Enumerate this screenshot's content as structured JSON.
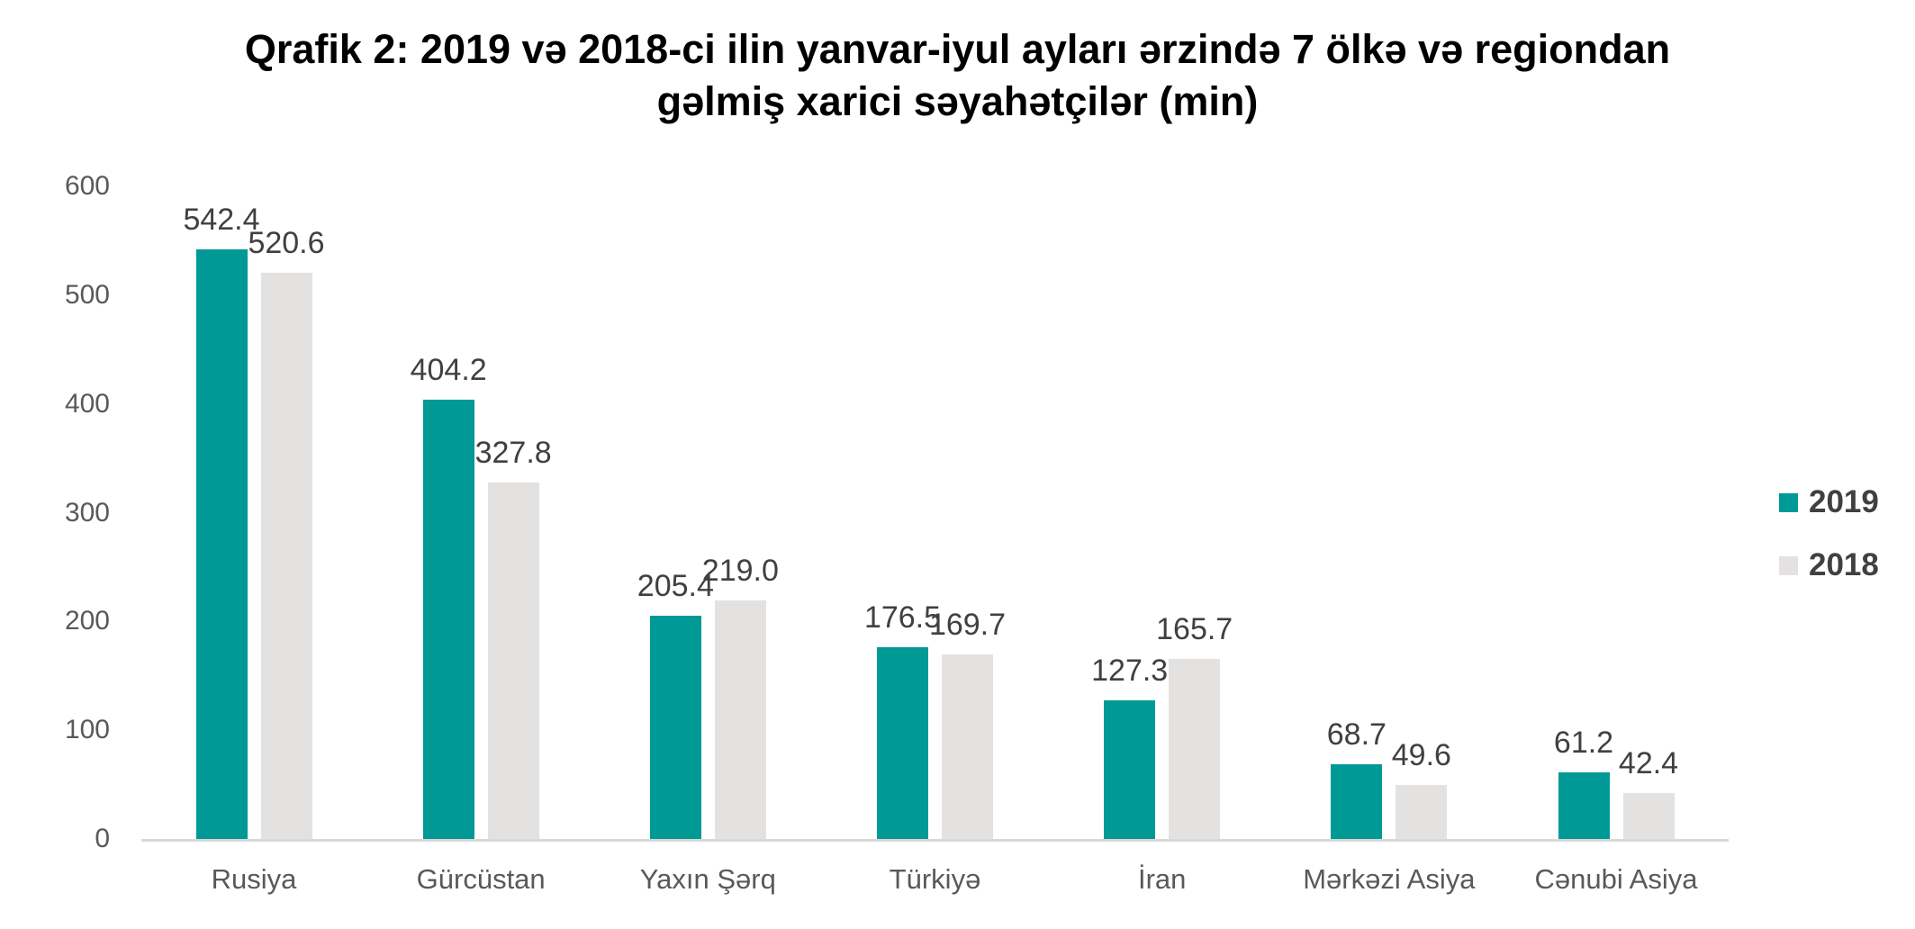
{
  "chart_data": {
    "type": "bar",
    "title": "Qrafik 2: 2019 və 2018-ci ilin yanvar-iyul ayları ərzində 7 ölkə və regiondan gəlmiş xarici səyahətçilər (min)",
    "title_lines": [
      "Qrafik 2: 2019 və 2018-ci ilin yanvar-iyul ayları ərzində 7 ölkə və regiondan",
      "gəlmiş xarici səyahətçilər (min)"
    ],
    "categories": [
      "Rusiya",
      "Gürcüstan",
      "Yaxın Şərq",
      "Türkiyə",
      "İran",
      "Mərkəzi Asiya",
      "Cənubi Asiya"
    ],
    "series": [
      {
        "name": "2019",
        "color": "#009996",
        "values": [
          542.4,
          404.2,
          205.4,
          176.5,
          127.3,
          68.7,
          61.2
        ]
      },
      {
        "name": "2018",
        "color": "#e3e2e1",
        "values": [
          520.6,
          327.8,
          219.0,
          169.7,
          165.7,
          49.6,
          42.4
        ]
      }
    ],
    "y_axis": {
      "min": 0,
      "max": 600,
      "tick_step": 100,
      "ticks": [
        0,
        100,
        200,
        300,
        400,
        500,
        600
      ]
    },
    "value_label_decimals": 1,
    "legend_position": "right",
    "grid": false,
    "colors": {
      "title_text": "#000000",
      "axis_line": "#d9d9d9",
      "axis_tick_text": "#595959",
      "category_text": "#595959",
      "value_label_text": "#404040",
      "legend_text": "#404040"
    }
  }
}
